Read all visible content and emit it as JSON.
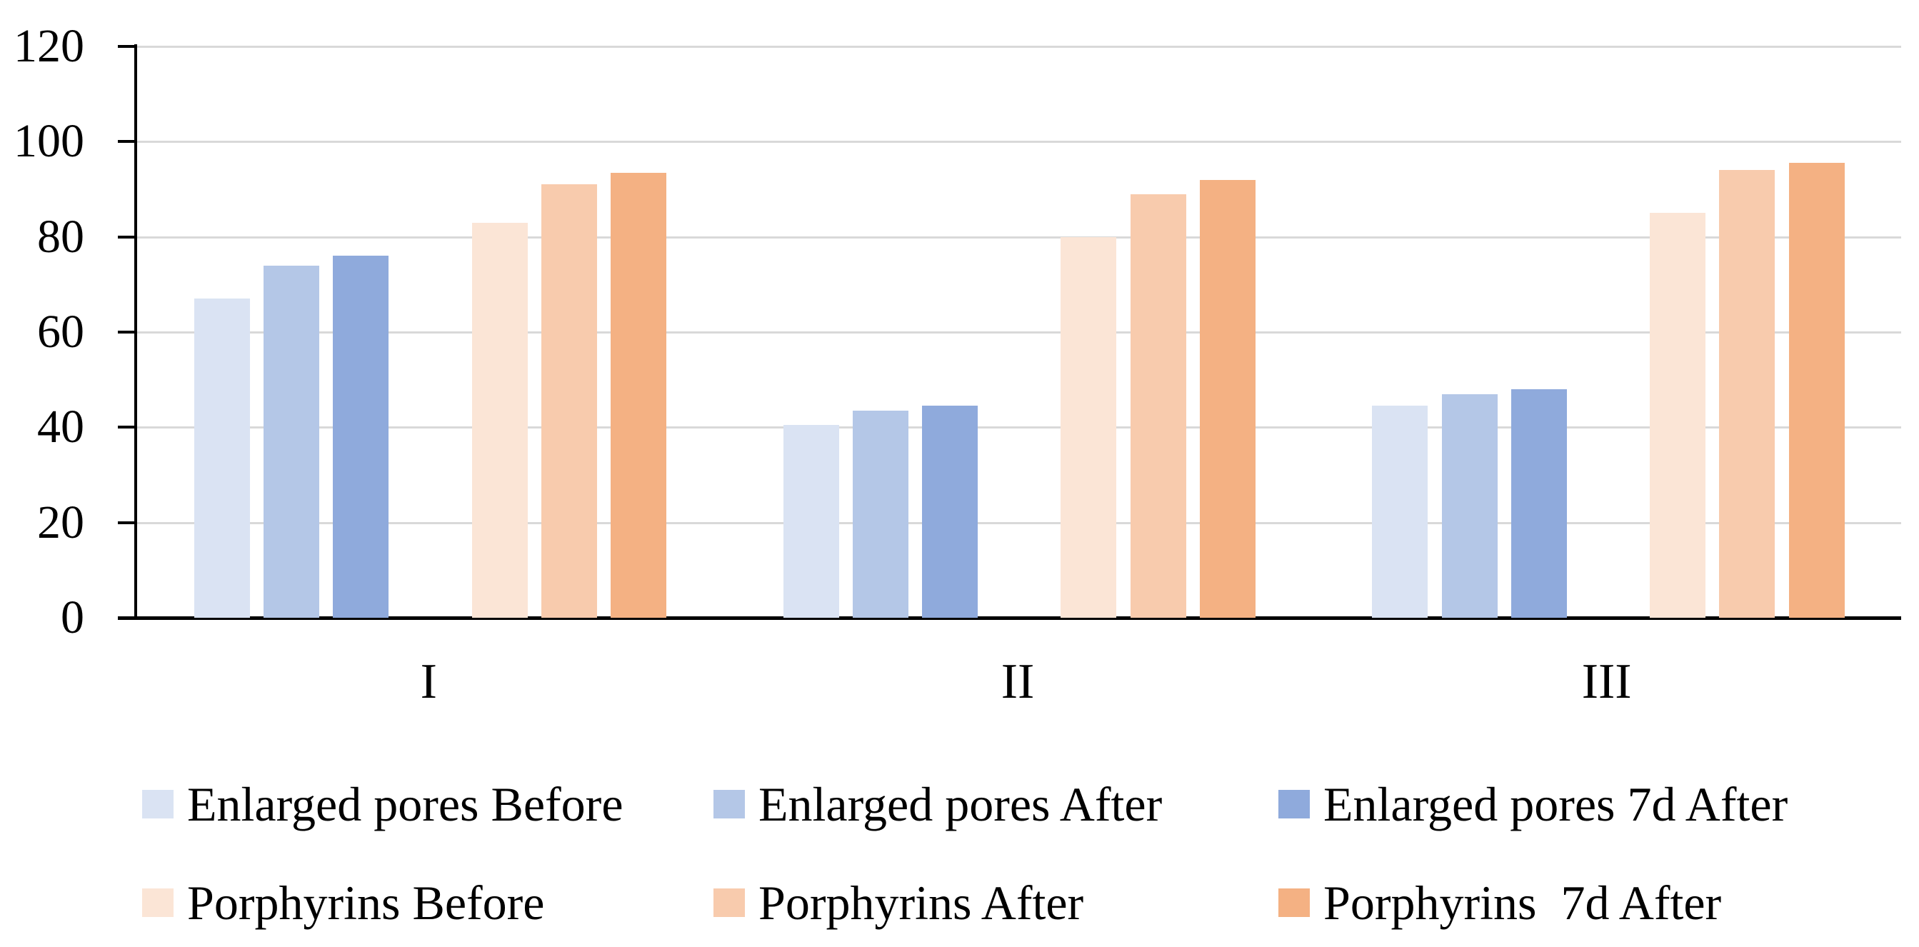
{
  "chart_data": {
    "type": "bar",
    "title": "",
    "xlabel": "",
    "ylabel": "",
    "categories": [
      "I",
      "II",
      "III"
    ],
    "series": [
      {
        "name": "Enlarged pores Before",
        "color": "#DAE3F3",
        "values": [
          67,
          40.5,
          44.5
        ]
      },
      {
        "name": "Enlarged pores After",
        "color": "#B4C7E7",
        "values": [
          74,
          43.5,
          47
        ]
      },
      {
        "name": "Enlarged pores 7d After",
        "color": "#8FAADC",
        "values": [
          76,
          44.5,
          48
        ]
      },
      {
        "name": "Porphyrins Before",
        "color": "#FBE5D6",
        "values": [
          83,
          80,
          85
        ]
      },
      {
        "name": "Porphyrins After",
        "color": "#F8CBAD",
        "values": [
          91,
          89,
          94
        ]
      },
      {
        "name": "Porphyrins  7d After",
        "color": "#F4B183",
        "values": [
          93.5,
          92,
          95.5
        ]
      }
    ],
    "ylim": [
      0,
      120
    ],
    "yticks": [
      0,
      20,
      40,
      60,
      80,
      100,
      120
    ],
    "grid": true,
    "legend_position": "bottom",
    "legend_rows": 2,
    "colors": {
      "axis": "#000000",
      "gridline": "#D9D9D9",
      "background": "#FFFFFF",
      "text": "#000000"
    }
  }
}
